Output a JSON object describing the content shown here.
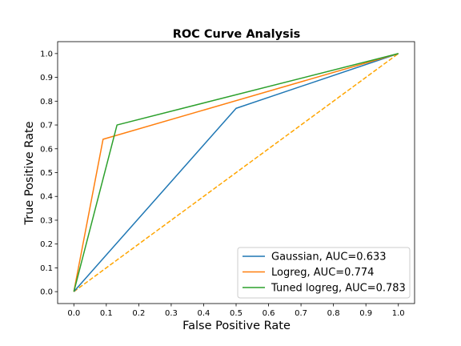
{
  "chart_data": {
    "type": "line",
    "title": "ROC Curve Analysis",
    "xlabel": "False Positive Rate",
    "ylabel": "True Positive Rate",
    "xlim": [
      -0.05,
      1.05
    ],
    "ylim": [
      -0.05,
      1.05
    ],
    "xticks": [
      0.0,
      0.1,
      0.2,
      0.3,
      0.4,
      0.5,
      0.6,
      0.7,
      0.8,
      0.9,
      1.0
    ],
    "yticks": [
      0.0,
      0.1,
      0.2,
      0.3,
      0.4,
      0.5,
      0.6,
      0.7,
      0.8,
      0.9,
      1.0
    ],
    "xtick_labels": [
      "0.0",
      "0.1",
      "0.2",
      "0.3",
      "0.4",
      "0.5",
      "0.6",
      "0.7",
      "0.8",
      "0.9",
      "1.0"
    ],
    "ytick_labels": [
      "0.0",
      "0.1",
      "0.2",
      "0.3",
      "0.4",
      "0.5",
      "0.6",
      "0.7",
      "0.8",
      "0.9",
      "1.0"
    ],
    "grid": false,
    "legend_position": "lower-right",
    "series": [
      {
        "name": "Gaussian, AUC=0.633",
        "color": "#1f77b4",
        "style": "solid",
        "x": [
          0.0,
          0.5,
          1.0
        ],
        "y": [
          0.0,
          0.77,
          1.0
        ]
      },
      {
        "name": "Logreg, AUC=0.774",
        "color": "#ff7f0e",
        "style": "solid",
        "x": [
          0.0,
          0.09,
          1.0
        ],
        "y": [
          0.0,
          0.64,
          1.0
        ]
      },
      {
        "name": "Tuned logreg, AUC=0.783",
        "color": "#2ca02c",
        "style": "solid",
        "x": [
          0.0,
          0.133,
          1.0
        ],
        "y": [
          0.0,
          0.7,
          1.0
        ]
      }
    ],
    "reference_line": {
      "color": "#ffa500",
      "style": "dashed",
      "x": [
        0.0,
        1.0
      ],
      "y": [
        0.0,
        1.0
      ]
    }
  }
}
